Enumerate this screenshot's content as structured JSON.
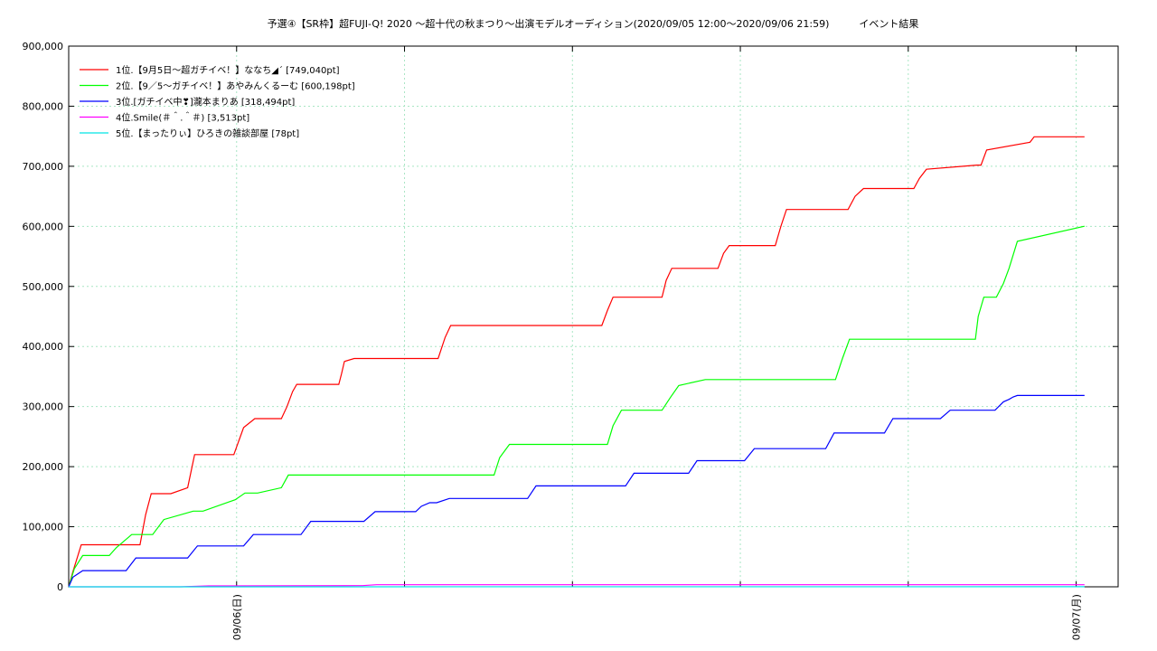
{
  "chart_data": {
    "type": "line",
    "title": "予選④【SR枠】超FUJI-Q! 2020 〜超十代の秋まつり〜出演モデルオーディション(2020/09/05 12:00〜2020/09/06 21:59)　　　イベント結果",
    "xlabel": "",
    "ylabel": "",
    "ylim": [
      0,
      900000
    ],
    "y_ticks": [
      "0",
      "100,000",
      "200,000",
      "300,000",
      "400,000",
      "500,000",
      "600,000",
      "700,000",
      "800,000",
      "900,000"
    ],
    "x_tick_labels": [
      "09/06(日)",
      "09/07(月)"
    ],
    "grid": true,
    "legend_position": "top-left",
    "series": [
      {
        "name": "1位.【9月5日〜超ガチイベ！】ななち◢ˊ [749,040pt]",
        "color": "#ff0000",
        "x_hours": [
          0,
          0.3,
          0.9,
          2.5,
          5.1,
          5.5,
          5.9,
          7.3,
          8.5,
          9.0,
          11.8,
          12.5,
          13.3,
          15.2,
          15.6,
          16.0,
          16.3,
          17.2,
          19.3,
          19.5,
          19.7,
          20.4,
          20.6,
          26.4,
          26.9,
          27.3,
          38.1,
          38.5,
          38.9,
          42.4,
          42.7,
          43.1,
          46.4,
          46.8,
          47.2,
          50.5,
          50.9,
          51.3,
          55.7,
          56.2,
          56.8,
          60.4,
          60.8,
          61.3,
          64.9,
          65.2,
          65.6,
          68.7,
          69.0,
          69.4,
          71.4,
          71.7,
          72.0,
          72.6
        ],
        "values": [
          0,
          25000,
          70000,
          70000,
          70000,
          120000,
          155000,
          155000,
          165000,
          220000,
          220000,
          265000,
          280000,
          280000,
          300000,
          325000,
          337000,
          337000,
          337000,
          355000,
          375000,
          380000,
          380000,
          380000,
          415000,
          435000,
          435000,
          460000,
          482000,
          482000,
          510000,
          530000,
          530000,
          555000,
          568000,
          568000,
          600000,
          628000,
          628000,
          650000,
          663000,
          663000,
          680000,
          695000,
          702000,
          702000,
          727000,
          740000,
          749040,
          749040,
          749040,
          749040,
          749040,
          749040
        ]
      },
      {
        "name": "2位.【9／5〜ガチイベ！】あやみんくるーむ  [600,198pt]",
        "color": "#00ff00",
        "x_hours": [
          0,
          0.4,
          1.0,
          2.9,
          3.4,
          4.5,
          6.0,
          6.8,
          8.9,
          9.6,
          11.9,
          12.6,
          13.5,
          15.2,
          15.7,
          30.4,
          30.8,
          31.5,
          33.6,
          34.0,
          34.6,
          38.5,
          38.9,
          39.5,
          42.4,
          43.0,
          43.6,
          45.5,
          46.0,
          46.2,
          46.9,
          47.7,
          48.0,
          48.6,
          54.8,
          55.3,
          55.8,
          59.6,
          60.4,
          64.8,
          65.0,
          65.4,
          65.8,
          66.3,
          66.8,
          67.2,
          67.8,
          72.6
        ],
        "values": [
          0,
          30000,
          52000,
          52000,
          65000,
          87000,
          87000,
          112000,
          126000,
          126000,
          145000,
          156000,
          156000,
          165000,
          186000,
          186000,
          215000,
          237000,
          237000,
          237000,
          237000,
          237000,
          268000,
          294000,
          294000,
          315000,
          335000,
          345000,
          345000,
          345000,
          345000,
          345000,
          345000,
          345000,
          345000,
          380000,
          412000,
          412000,
          412000,
          412000,
          450000,
          482000,
          482000,
          482000,
          505000,
          530000,
          575000,
          600198
        ]
      },
      {
        "name": "3位.[ガチイベ中❣]瀧本まりあ [318,494pt]",
        "color": "#0000ff",
        "x_hours": [
          0,
          0.3,
          1.0,
          4.1,
          4.8,
          8.5,
          9.2,
          12.5,
          13.2,
          16.6,
          17.3,
          21.1,
          21.9,
          24.8,
          25.2,
          25.8,
          26.3,
          27.2,
          32.8,
          33.4,
          39.8,
          40.4,
          44.3,
          44.9,
          48.3,
          49.0,
          54.1,
          54.7,
          58.3,
          58.9,
          62.3,
          63.0,
          66.2,
          66.8,
          67.2,
          67.5,
          67.8,
          68.1,
          72.6
        ],
        "values": [
          0,
          16000,
          27000,
          27000,
          48000,
          48000,
          68000,
          68000,
          87000,
          87000,
          109000,
          109000,
          125000,
          125000,
          134000,
          140000,
          140000,
          147000,
          147000,
          168000,
          168000,
          189000,
          189000,
          210000,
          210000,
          230000,
          230000,
          256000,
          256000,
          280000,
          280000,
          294000,
          294000,
          308000,
          312000,
          316000,
          318494,
          318494,
          318494
        ]
      },
      {
        "name": "4位.Smile(＃＾.＾＃) [3,513pt]",
        "color": "#ff00ff",
        "x_hours": [
          0,
          8.0,
          10.0,
          21.0,
          22.0,
          72.6
        ],
        "values": [
          0,
          0,
          1500,
          2000,
          3513,
          3513
        ]
      },
      {
        "name": "5位.【まったりぃ】ひろきの雑談部屋 [78pt]",
        "color": "#00e5e5",
        "x_hours": [
          0,
          72.6
        ],
        "values": [
          0,
          78
        ]
      }
    ]
  }
}
